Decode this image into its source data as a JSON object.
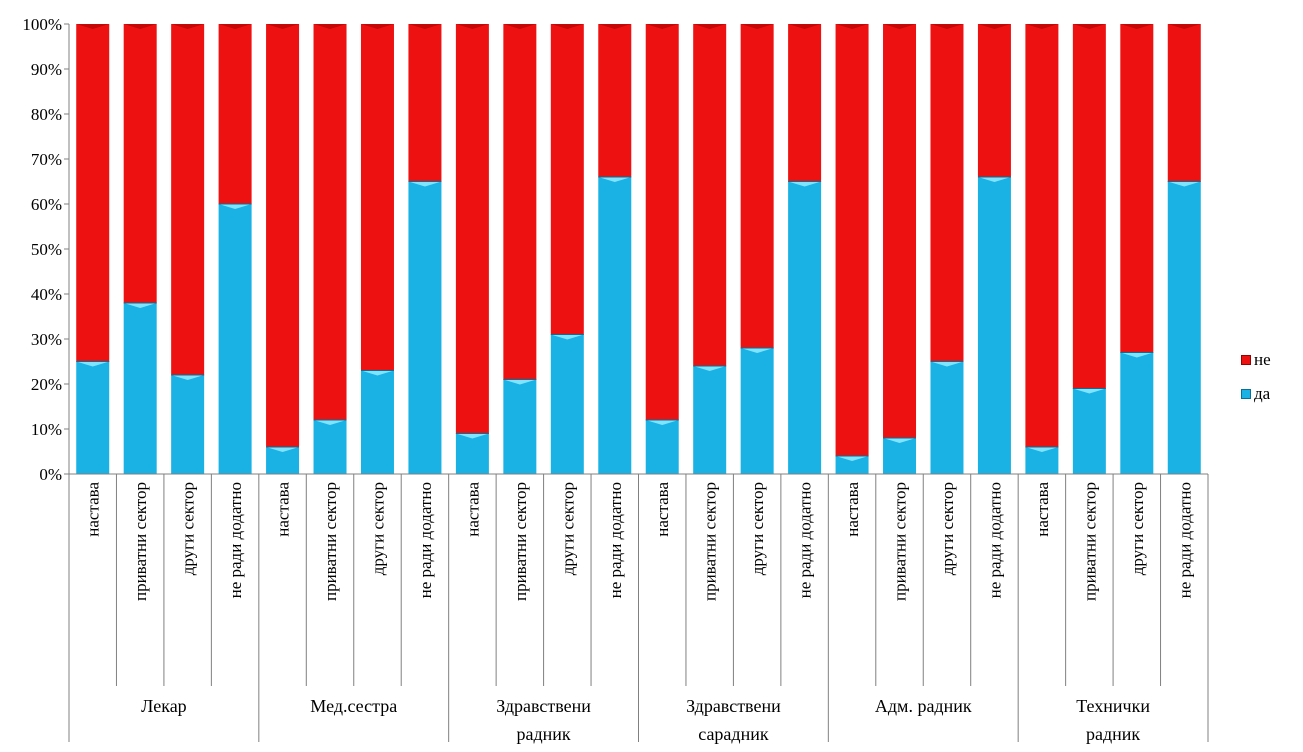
{
  "chart_data": {
    "type": "bar",
    "stacked": true,
    "percent": true,
    "title": "",
    "xlabel": "",
    "ylabel": "",
    "ylim": [
      0,
      100
    ],
    "yticks": [
      "0%",
      "10%",
      "20%",
      "30%",
      "40%",
      "50%",
      "60%",
      "70%",
      "80%",
      "90%",
      "100%"
    ],
    "groups": [
      {
        "label": "Лекар",
        "categories": [
          "настава",
          "приватни сектор",
          "други сектор",
          "не ради додатно"
        ]
      },
      {
        "label": "Мед.сестра",
        "categories": [
          "настава",
          "приватни сектор",
          "други сектор",
          "не ради додатно"
        ]
      },
      {
        "label": "Здравствени радник",
        "categories": [
          "настава",
          "приватни сектор",
          "други сектор",
          "не ради додатно"
        ]
      },
      {
        "label": "Здравствени сарадник",
        "categories": [
          "настава",
          "приватни сектор",
          "други сектор",
          "не ради додатно"
        ]
      },
      {
        "label": "Адм. радник",
        "categories": [
          "настава",
          "приватни сектор",
          "други сектор",
          "не ради додатно"
        ]
      },
      {
        "label": "Технички радник",
        "categories": [
          "настава",
          "приватни сектор",
          "други сектор",
          "не ради додатно"
        ]
      }
    ],
    "series": [
      {
        "name": "да",
        "color": "#1ab2e4",
        "values": [
          25,
          38,
          22,
          60,
          6,
          12,
          23,
          65,
          9,
          21,
          31,
          66,
          12,
          24,
          28,
          65,
          4,
          8,
          25,
          66,
          6,
          19,
          27,
          65
        ]
      },
      {
        "name": "не",
        "color": "#ee1111",
        "values": [
          75,
          62,
          78,
          40,
          94,
          88,
          77,
          35,
          91,
          79,
          69,
          34,
          88,
          76,
          72,
          35,
          96,
          92,
          75,
          34,
          94,
          81,
          73,
          35
        ]
      }
    ],
    "legend": {
      "position": "right",
      "entries": [
        "не",
        "да"
      ]
    },
    "grid": false
  }
}
